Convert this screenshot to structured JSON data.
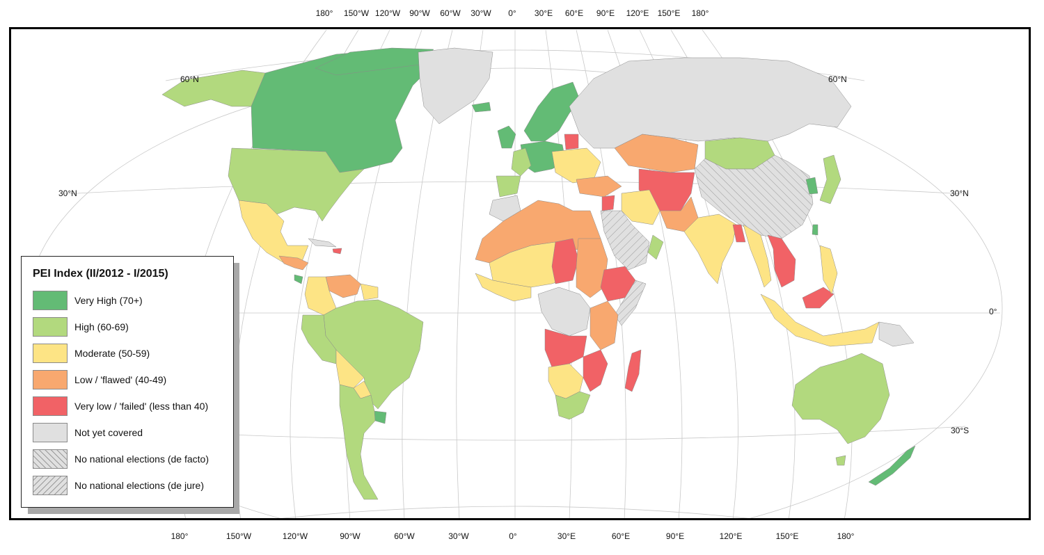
{
  "title": "PEI Index (II/2012 - I/2015)",
  "top_longitude_labels": [
    "180°",
    "150°W",
    "120°W",
    "90°W",
    "60°W",
    "30°W",
    "0°",
    "30°E",
    "60°E",
    "90°E",
    "120°E",
    "150°E",
    "180°"
  ],
  "bottom_longitude_labels": [
    "180°",
    "150°W",
    "120°W",
    "90°W",
    "60°W",
    "30°W",
    "0°",
    "30°E",
    "60°E",
    "90°E",
    "120°E",
    "150°E",
    "180°"
  ],
  "latitude_labels": {
    "left_60n": "60°N",
    "right_60n": "60°N",
    "left_30n": "30°N",
    "right_30n": "30°N",
    "right_0": "0°",
    "right_30s": "30°S"
  },
  "legend": [
    {
      "label": "Very High (70+)",
      "color": "#63bb75",
      "pattern": "none"
    },
    {
      "label": "High (60-69)",
      "color": "#b2d97e",
      "pattern": "none"
    },
    {
      "label": "Moderate (50-59)",
      "color": "#fde485",
      "pattern": "none"
    },
    {
      "label": "Low / 'flawed' (40-49)",
      "color": "#f8a86f",
      "pattern": "none"
    },
    {
      "label": "Very low / 'failed' (less than 40)",
      "color": "#f16266",
      "pattern": "none"
    },
    {
      "label": "Not yet covered",
      "color": "#e0e0e0",
      "pattern": "none"
    },
    {
      "label": "No national elections (de facto)",
      "color": "#e0e0e0",
      "pattern": "diag-right"
    },
    {
      "label": "No national elections (de jure)",
      "color": "#e0e0e0",
      "pattern": "diag-left"
    }
  ]
}
